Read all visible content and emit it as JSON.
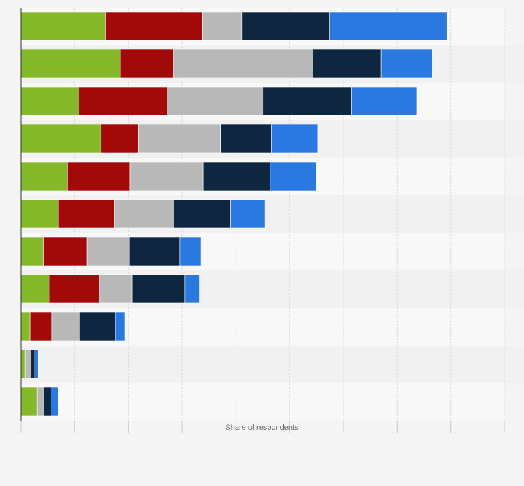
{
  "chart_data": {
    "type": "bar",
    "orientation": "horizontal",
    "stacked": true,
    "title": "",
    "xlabel": "Share of respondents",
    "ylabel": "",
    "xlim": [
      0,
      90
    ],
    "grid": true,
    "legend": "none",
    "categories": [
      "",
      "",
      "",
      "",
      "",
      "",
      "",
      "",
      "",
      "",
      ""
    ],
    "series": [
      {
        "color": "#86b929",
        "values": [
          15.7,
          18.5,
          10.8,
          14.9,
          8.7,
          7.0,
          4.2,
          5.3,
          1.7,
          0.8,
          3.0
        ]
      },
      {
        "color": "#a20909",
        "values": [
          18.1,
          9.9,
          16.4,
          7.0,
          11.6,
          10.4,
          8.1,
          9.3,
          4.1,
          0.0,
          0.0
        ]
      },
      {
        "color": "#b8b8b8",
        "values": [
          7.3,
          26.0,
          17.9,
          15.3,
          13.6,
          11.1,
          7.9,
          6.1,
          5.1,
          1.1,
          1.3
        ]
      },
      {
        "color": "#0e2640",
        "values": [
          16.4,
          12.6,
          16.4,
          9.4,
          12.5,
          10.5,
          9.4,
          9.8,
          6.7,
          0.7,
          1.3
        ]
      },
      {
        "color": "#2a79e0",
        "values": [
          21.8,
          9.5,
          12.2,
          8.6,
          8.6,
          6.4,
          3.9,
          2.8,
          1.8,
          0.6,
          1.4
        ]
      }
    ]
  }
}
